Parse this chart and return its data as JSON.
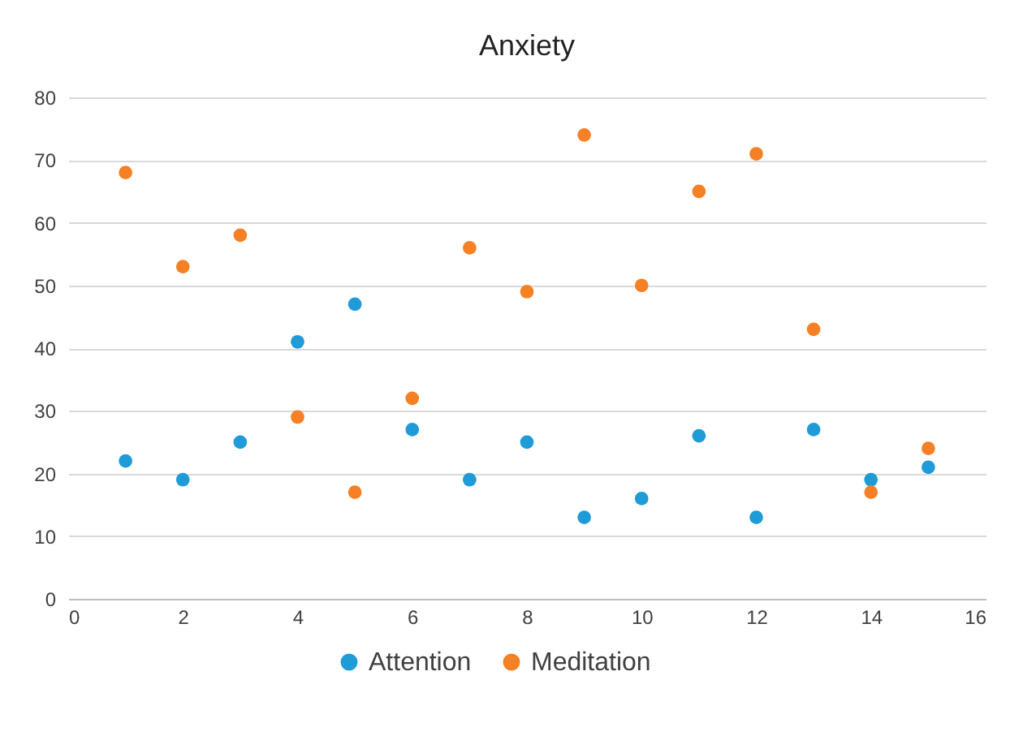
{
  "chart_data": {
    "type": "scatter",
    "title": "Anxiety",
    "x": [
      1,
      2,
      3,
      4,
      5,
      6,
      7,
      8,
      9,
      10,
      11,
      12,
      13,
      14,
      15
    ],
    "series": [
      {
        "name": "Attention",
        "color": "#1f9bd7",
        "values": [
          22,
          19,
          25,
          41,
          47,
          27,
          19,
          25,
          13,
          16,
          26,
          13,
          27,
          19,
          21
        ]
      },
      {
        "name": "Meditation",
        "color": "#f58025",
        "values": [
          68,
          53,
          58,
          29,
          17,
          32,
          56,
          49,
          74,
          50,
          65,
          71,
          43,
          17,
          24
        ]
      }
    ],
    "xlim": [
      0,
      16
    ],
    "xticks": [
      0,
      2,
      4,
      6,
      8,
      10,
      12,
      14,
      16
    ],
    "ylim": [
      0,
      80
    ],
    "yticks": [
      0,
      10,
      20,
      30,
      40,
      50,
      60,
      70,
      80
    ],
    "grid": "y",
    "legend": "bottom",
    "marker": "circle"
  }
}
